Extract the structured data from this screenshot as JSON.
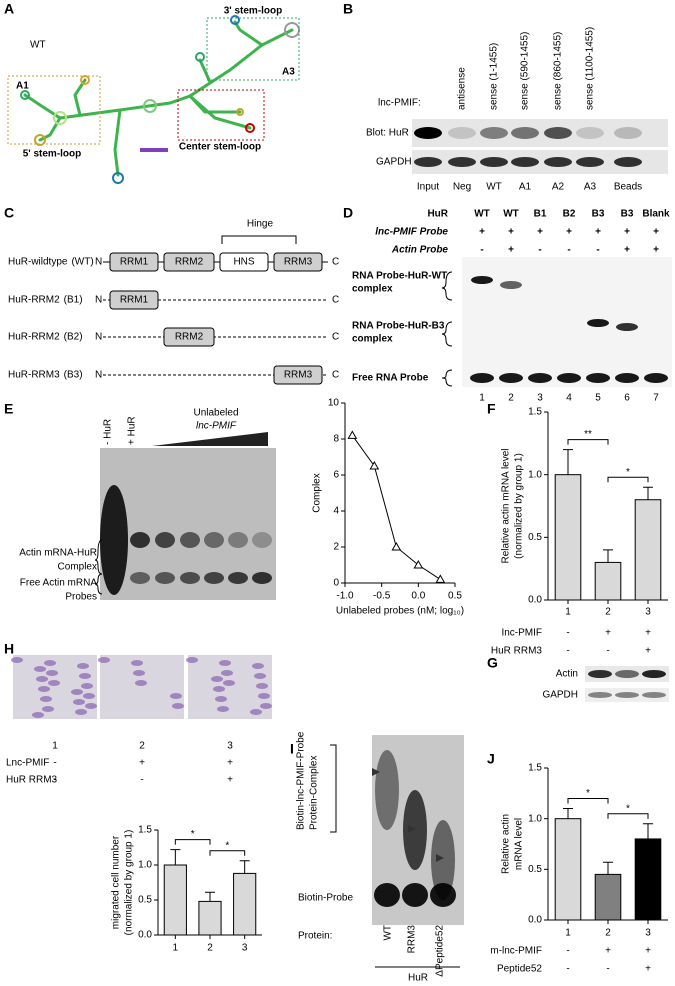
{
  "figure": {
    "A": {
      "letter": "A",
      "wt": "WT",
      "stem3": "3' stem-loop",
      "a3": "A3",
      "a1": "A1",
      "stem5": "5' stem-loop",
      "center": "Center stem-loop"
    },
    "B": {
      "letter": "B",
      "probe": "lnc-PMIF:",
      "lanes": [
        "antisense",
        "sense (1-1455)",
        "sense (590-1455)",
        "sense (860-1455)",
        "sense (1100-1455)"
      ],
      "blot": "Blot: HuR",
      "gapdh": "GAPDH",
      "bottom": [
        "Input",
        "Neg",
        "WT",
        "A1",
        "A2",
        "A3",
        "Beads"
      ],
      "bottom_colors": [
        "#000000",
        "#000000",
        "#7030a0",
        "#c9a227",
        "#c00000",
        "#2ea56a",
        "#000000"
      ]
    },
    "C": {
      "letter": "C",
      "hinge": "Hinge",
      "n": "N",
      "c": "C",
      "domains": [
        "RRM1",
        "RRM2",
        "HNS",
        "RRM3"
      ],
      "rows": [
        {
          "name": "HuR-wildtype",
          "tag": "(WT)"
        },
        {
          "name": "HuR-RRM2",
          "tag": "(B1)"
        },
        {
          "name": "HuR-RRM2",
          "tag": "(B2)"
        },
        {
          "name": "HuR-RRM3",
          "tag": "(B3)"
        }
      ]
    },
    "D": {
      "letter": "D",
      "rows": [
        {
          "name": "HuR",
          "values": [
            "WT",
            "WT",
            "B1",
            "B2",
            "B3",
            "B3",
            "Blank"
          ]
        },
        {
          "name": "lnc-PMIF Probe",
          "values": [
            "+",
            "+",
            "+",
            "+",
            "+",
            "+",
            "+"
          ]
        },
        {
          "name": "Actin Probe",
          "values": [
            "-",
            "+",
            "-",
            "-",
            "-",
            "+",
            "+"
          ]
        }
      ],
      "wt_complex": [
        "RNA Probe-HuR-WT",
        "complex"
      ],
      "b3_complex": [
        "RNA Probe-HuR-B3",
        "complex"
      ],
      "free": "Free RNA Probe",
      "lanes": [
        "1",
        "2",
        "3",
        "4",
        "5",
        "6",
        "7"
      ]
    },
    "E": {
      "letter": "E",
      "minus": "- HuR",
      "plus": "+ HuR",
      "unlabeled": "Unlabeled",
      "probe": "lnc-PMIF",
      "complex": [
        "Actin mRNA-HuR",
        "Complex"
      ],
      "free": [
        "Free Actin mRNA",
        "Probes"
      ]
    },
    "F": {
      "letter": "F"
    },
    "G": {
      "letter": "G",
      "actin": "Actin",
      "gapdh": "GAPDH"
    },
    "H": {
      "letter": "H",
      "lanes": [
        "1",
        "2",
        "3"
      ],
      "rows": [
        {
          "name": "Lnc-PMIF",
          "values": [
            "-",
            "+",
            "+"
          ]
        },
        {
          "name": "HuR RRM3",
          "values": [
            "-",
            "-",
            "+"
          ]
        }
      ]
    },
    "I": {
      "letter": "I",
      "complex": [
        "Biotin-lnc-PMIF-Probe",
        "Protein-Complex"
      ],
      "probe": "Biotin-Probe",
      "protein": "Protein:",
      "lanes": [
        "WT",
        "RRM3",
        "ΔPeptide52"
      ],
      "group": "HuR"
    },
    "J": {
      "letter": "J"
    }
  },
  "chart_data": [
    {
      "type": "line",
      "xlabel": "Unlabeled probes (nM; log₁₀)",
      "ylabel": "Complex",
      "color": "#000000",
      "x": [
        -0.9,
        -0.6,
        -0.3,
        0.0,
        0.3
      ],
      "values": [
        8.2,
        6.5,
        2.0,
        1.0,
        0.2
      ],
      "xlim": [
        -1,
        0.5
      ],
      "xticks": [
        {
          "value": -1,
          "label": "-1.0"
        },
        -0.5,
        {
          "value": 0,
          "label": "0.0"
        },
        0.5
      ],
      "ylim": [
        0,
        10
      ],
      "yticks": [
        0,
        2,
        4,
        6,
        8,
        10
      ]
    },
    {
      "type": "bar",
      "ylabel": [
        "Relative actin mRNA level",
        "(normalized by group 1)"
      ],
      "categories": [
        "1",
        "2",
        "3"
      ],
      "values": [
        1.0,
        0.3,
        0.8
      ],
      "errors": [
        0.2,
        0.1,
        0.1
      ],
      "colors": [
        "#d9d9d9",
        "#d9d9d9",
        "#d9d9d9"
      ],
      "ylim": [
        0,
        1.5
      ],
      "yticks": [
        {
          "value": 0,
          "label": "0.0"
        },
        0.5,
        {
          "value": 1,
          "label": "1.0"
        },
        1.5
      ],
      "annotations": [
        "**",
        "*"
      ],
      "conditions": [
        {
          "name": "Inc-PMIF",
          "values": [
            "-",
            "+",
            "+"
          ]
        },
        {
          "name": "HuR RRM3",
          "values": [
            "-",
            "-",
            "+"
          ]
        }
      ]
    },
    {
      "type": "bar",
      "ylabel": [
        "migrated cell number",
        "(normalized by group 1)"
      ],
      "categories": [
        "1",
        "2",
        "3"
      ],
      "values": [
        1.0,
        0.48,
        0.88
      ],
      "errors": [
        0.22,
        0.13,
        0.18
      ],
      "colors": [
        "#d9d9d9",
        "#d9d9d9",
        "#d9d9d9"
      ],
      "ylim": [
        0,
        1.5
      ],
      "yticks": [
        {
          "value": 0,
          "label": "0.0"
        },
        0.5,
        {
          "value": 1,
          "label": "1.0"
        },
        1.5
      ],
      "annotations": [
        "*",
        "*"
      ]
    },
    {
      "type": "bar",
      "ylabel": [
        "Relative actin",
        "mRNA level"
      ],
      "categories": [
        "1",
        "2",
        "3"
      ],
      "values": [
        1.0,
        0.45,
        0.8
      ],
      "errors": [
        0.1,
        0.12,
        0.15
      ],
      "colors": [
        "#d9d9d9",
        "#808080",
        "#000000"
      ],
      "ylim": [
        0,
        1.5
      ],
      "yticks": [
        {
          "value": 0,
          "label": "0.0"
        },
        0.5,
        {
          "value": 1,
          "label": "1.0"
        },
        1.5
      ],
      "annotations": [
        "*",
        "*"
      ],
      "conditions": [
        {
          "name": "m-lnc-PMIF",
          "values": [
            "-",
            "+",
            "+"
          ]
        },
        {
          "name": "Peptide52",
          "values": [
            "-",
            "-",
            "+"
          ]
        }
      ]
    }
  ]
}
